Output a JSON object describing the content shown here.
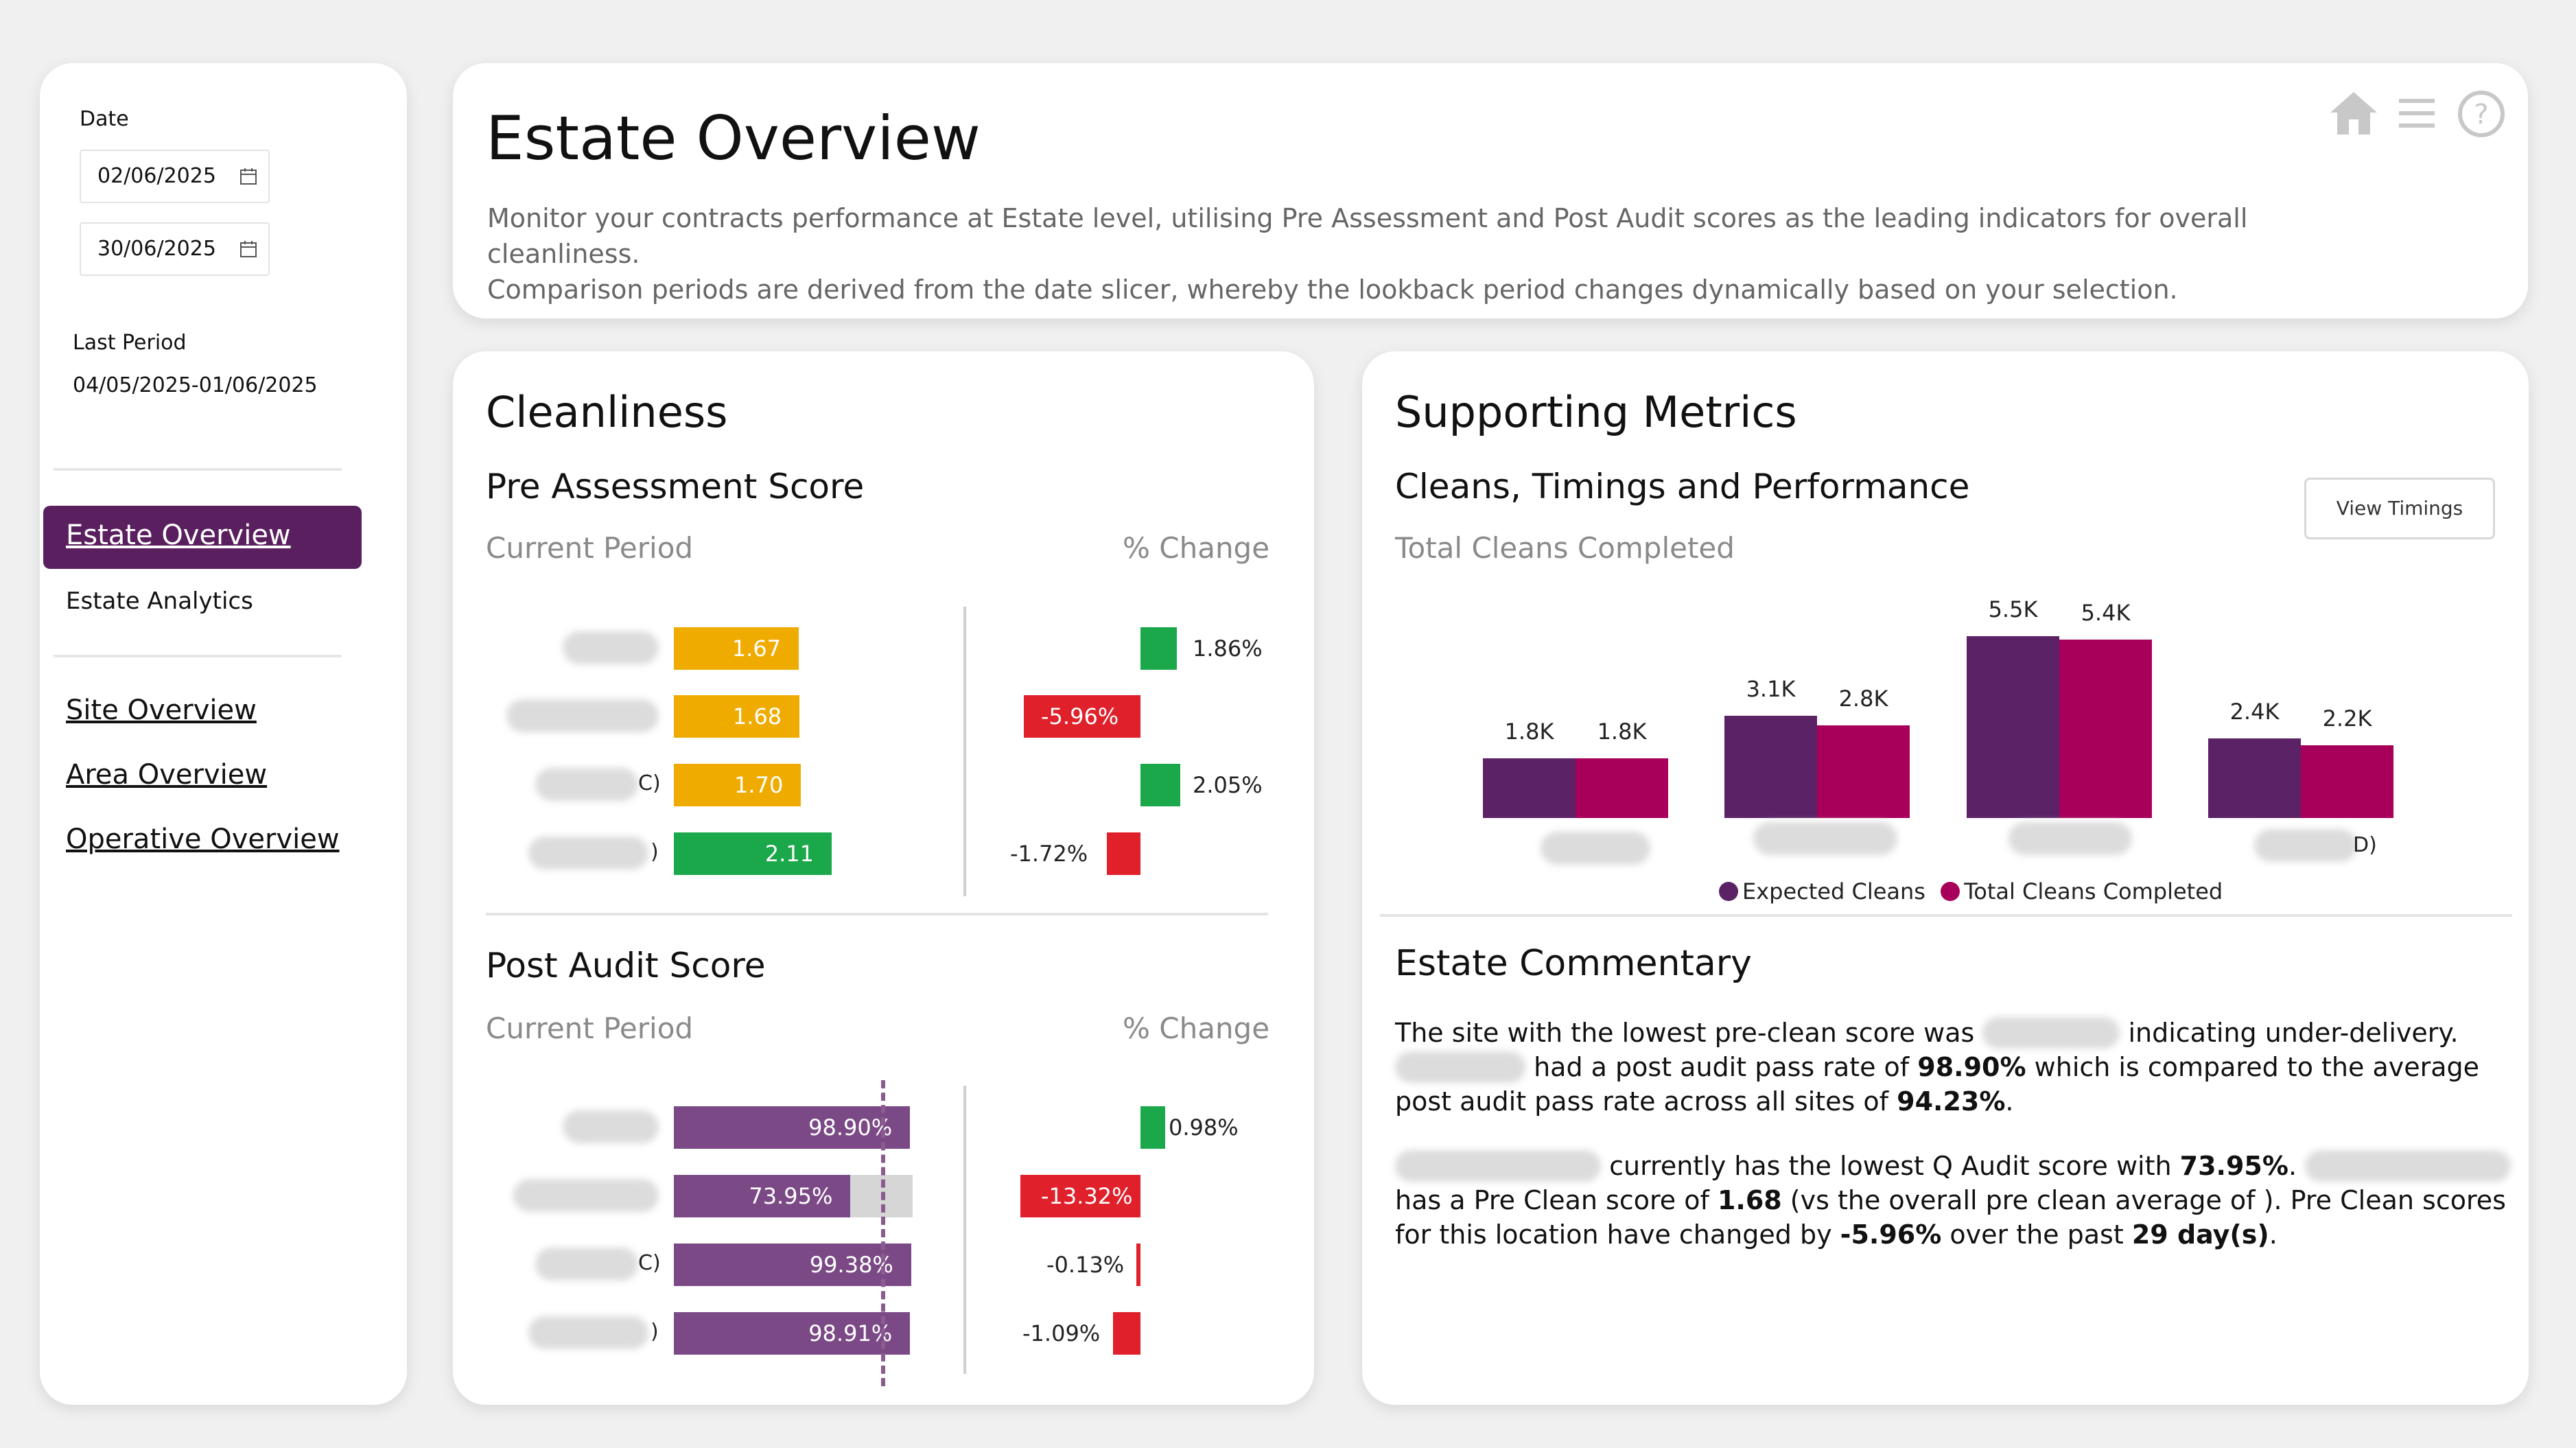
{
  "sidebar": {
    "date_label": "Date",
    "date_from": "02/06/2025",
    "date_to": "30/06/2025",
    "last_period_label": "Last Period",
    "last_period_value": "04/05/2025-01/06/2025",
    "nav": {
      "estate_overview": "Estate Overview",
      "estate_analytics": "Estate Analytics",
      "site_overview": "Site Overview",
      "area_overview": "Area Overview",
      "operative_overview": "Operative Overview"
    }
  },
  "header": {
    "title": "Estate Overview",
    "desc_line1": "Monitor your contracts performance at Estate level, utilising Pre Assessment and Post Audit scores as the leading indicators for overall cleanliness.",
    "desc_line2": "Comparison periods are derived from the date slicer, whereby the lookback period changes dynamically based on your selection."
  },
  "cleanliness": {
    "title": "Cleanliness",
    "pre": {
      "title": "Pre Assessment Score",
      "current_label": "Current Period",
      "change_label": "% Change",
      "rows": [
        {
          "suffix": "",
          "value": "1.67",
          "score": 1.67,
          "change": "1.86%",
          "change_num": 1.86,
          "color": "#f0ab00"
        },
        {
          "suffix": "",
          "value": "1.68",
          "score": 1.68,
          "change": "-5.96%",
          "change_num": -5.96,
          "color": "#f0ab00"
        },
        {
          "suffix": "C)",
          "value": "1.70",
          "score": 1.7,
          "change": "2.05%",
          "change_num": 2.05,
          "color": "#f0ab00"
        },
        {
          "suffix": ")",
          "value": "2.11",
          "score": 2.11,
          "change": "-1.72%",
          "change_num": -1.72,
          "color": "#1aa84a"
        }
      ]
    },
    "post": {
      "title": "Post Audit Score",
      "current_label": "Current Period",
      "change_label": "% Change",
      "rows": [
        {
          "suffix": "",
          "value": "98.90%",
          "pct": 98.9,
          "change": "0.98%",
          "change_num": 0.98
        },
        {
          "suffix": "",
          "value": "73.95%",
          "pct": 73.95,
          "change": "-13.32%",
          "change_num": -13.32
        },
        {
          "suffix": "C)",
          "value": "99.38%",
          "pct": 99.38,
          "change": "-0.13%",
          "change_num": -0.13
        },
        {
          "suffix": ")",
          "value": "98.91%",
          "pct": 98.91,
          "change": "-1.09%",
          "change_num": -1.09
        }
      ]
    }
  },
  "support": {
    "title": "Supporting Metrics",
    "subtitle": "Cleans, Timings and Performance",
    "chart_label": "Total Cleans Completed",
    "view_timings": "View Timings",
    "commentary_title": "Estate Commentary",
    "commentary": {
      "p1a": "The site with the lowest pre-clean score was",
      "p1b": "indicating under-delivery.",
      "p1c": "had a post audit pass rate of",
      "p1d": "98.90%",
      "p1e": "which is compared to the average post audit pass rate across all sites of",
      "p1f": "94.23%",
      "p1g": ".",
      "p2a": "currently has the lowest Q Audit score with",
      "p2b": "73.95%",
      "p2c": ".",
      "p2d": "has a Pre Clean score of",
      "p2e": "1.68",
      "p2f": "(vs the overall pre clean average of ). Pre Clean scores for this location have changed by",
      "p2g": "-5.96%",
      "p2h": "over the past",
      "p2i": "29 day(s)",
      "p2j": "."
    }
  },
  "chart_data": {
    "type": "bar",
    "title": "Total Cleans Completed",
    "categories": [
      "",
      "",
      "",
      "D)"
    ],
    "series": [
      {
        "name": "Expected Cleans",
        "color": "#5b2266",
        "values": [
          1800,
          3100,
          5500,
          2400
        ],
        "labels": [
          "1.8K",
          "3.1K",
          "5.5K",
          "2.4K"
        ]
      },
      {
        "name": "Total Cleans Completed",
        "color": "#a8005a",
        "values": [
          1800,
          2800,
          5400,
          2200
        ],
        "labels": [
          "1.8K",
          "2.8K",
          "5.4K",
          "2.2K"
        ]
      }
    ],
    "legend": "bottom",
    "ylim": [
      0,
      5600
    ]
  },
  "colors": {
    "brand_purple": "#5a1f5e",
    "pre_amber": "#f0ab00",
    "pre_green": "#1aa84a",
    "post_purple": "#7b4a86",
    "pos_change": "#1aa84a",
    "neg_change": "#e0202a"
  }
}
